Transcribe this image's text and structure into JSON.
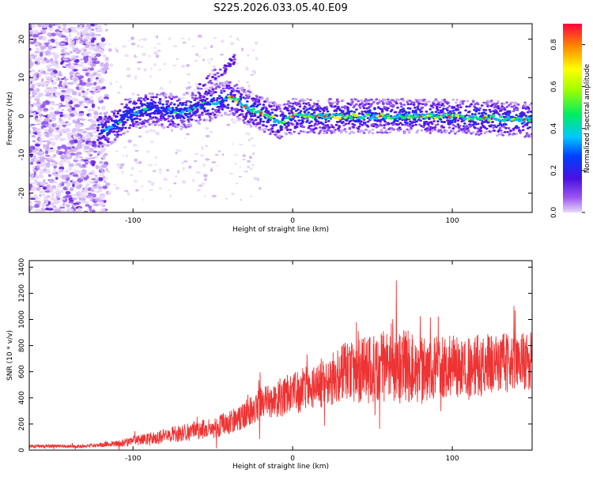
{
  "title": "S225.2026.033.05.40.E09",
  "chart_data": [
    {
      "type": "heatmap",
      "name": "spectrogram",
      "xlabel": "Height of straight line (km)",
      "ylabel": "Frequency (Hz)",
      "xlim": [
        -165,
        150
      ],
      "ylim": [
        -25,
        24
      ],
      "xticks": [
        -100,
        0,
        100
      ],
      "yticks": [
        -20,
        -10,
        0,
        10,
        20
      ],
      "ridge_frequency_hz": [
        {
          "x": -115,
          "y": -3.5
        },
        {
          "x": -105,
          "y": 0
        },
        {
          "x": -90,
          "y": 2
        },
        {
          "x": -70,
          "y": 1
        },
        {
          "x": -55,
          "y": 3
        },
        {
          "x": -38,
          "y": 5
        },
        {
          "x": -28,
          "y": 2
        },
        {
          "x": -15,
          "y": 0
        },
        {
          "x": -8,
          "y": -1.5
        },
        {
          "x": 0,
          "y": 0
        },
        {
          "x": 20,
          "y": 0
        },
        {
          "x": 50,
          "y": 0
        },
        {
          "x": 100,
          "y": 0
        },
        {
          "x": 150,
          "y": -1
        }
      ],
      "colorbar": {
        "label": "Normalized spectral amplitude",
        "range": [
          0,
          0.9
        ],
        "ticks": [
          0.0,
          0.2,
          0.4,
          0.6,
          0.8
        ]
      }
    },
    {
      "type": "line",
      "name": "snr",
      "xlabel": "Height of straight line (km)",
      "ylabel": "SNR (10 * v/v)",
      "xlim": [
        -165,
        150
      ],
      "ylim": [
        0,
        1450
      ],
      "xticks": [
        -100,
        0,
        100
      ],
      "yticks": [
        0,
        200,
        400,
        600,
        800,
        1000,
        1200,
        1400
      ],
      "color": "#ee3333",
      "envelope": {
        "x": [
          -165,
          -130,
          -110,
          -90,
          -70,
          -50,
          -35,
          -25,
          -15,
          0,
          20,
          35,
          50,
          65,
          80,
          100,
          120,
          150
        ],
        "mean": [
          30,
          30,
          50,
          90,
          130,
          170,
          230,
          320,
          380,
          430,
          520,
          600,
          620,
          660,
          620,
          640,
          650,
          680
        ],
        "spread": [
          15,
          15,
          30,
          60,
          80,
          100,
          120,
          150,
          180,
          200,
          250,
          300,
          330,
          360,
          320,
          300,
          300,
          280
        ]
      }
    }
  ]
}
